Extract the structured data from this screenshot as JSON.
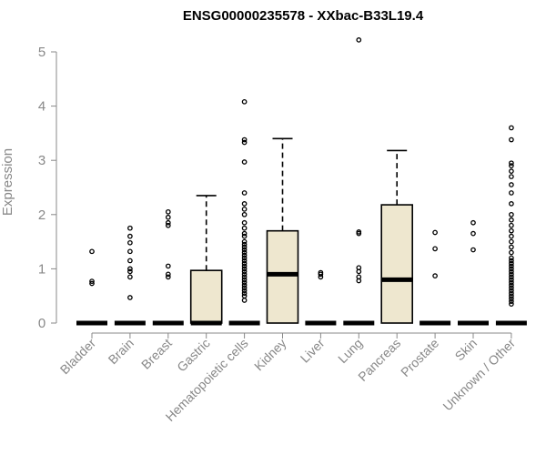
{
  "chart_data": {
    "type": "box",
    "title": "ENSG00000235578 - XXbac-B33L19.4",
    "ylabel": "Expression",
    "ylim": [
      0,
      5.3
    ],
    "yticks": [
      0,
      1,
      2,
      3,
      4,
      5
    ],
    "categories": [
      "Bladder",
      "Brain",
      "Breast",
      "Gastric",
      "Hematopoietic cells",
      "Kidney",
      "Liver",
      "Lung",
      "Pancreas",
      "Prostate",
      "Skin",
      "Unknown / Other"
    ],
    "box_color": "#eee7cf",
    "boxes": [
      {
        "category": "Bladder",
        "q1": 0,
        "median": 0,
        "q3": 0,
        "whisker_low": 0,
        "whisker_high": 0,
        "outliers": [
          0.73,
          0.77,
          1.32
        ]
      },
      {
        "category": "Brain",
        "q1": 0,
        "median": 0,
        "q3": 0,
        "whisker_low": 0,
        "whisker_high": 0,
        "outliers": [
          0.47,
          0.85,
          0.95,
          1.0,
          1.15,
          1.32,
          1.48,
          1.6,
          1.75
        ]
      },
      {
        "category": "Breast",
        "q1": 0,
        "median": 0,
        "q3": 0,
        "whisker_low": 0,
        "whisker_high": 0,
        "outliers": [
          0.85,
          0.9,
          1.05,
          1.8,
          1.85,
          1.95,
          2.05
        ]
      },
      {
        "category": "Gastric",
        "q1": 0,
        "median": 0,
        "q3": 0.97,
        "whisker_low": 0,
        "whisker_high": 2.35,
        "outliers": []
      },
      {
        "category": "Hematopoietic cells",
        "q1": 0,
        "median": 0,
        "q3": 0,
        "whisker_low": 0,
        "whisker_high": 0,
        "outliers": [
          0.42,
          0.5,
          0.55,
          0.6,
          0.65,
          0.7,
          0.75,
          0.8,
          0.85,
          0.9,
          0.95,
          1.0,
          1.05,
          1.1,
          1.15,
          1.2,
          1.25,
          1.3,
          1.35,
          1.4,
          1.45,
          1.5,
          1.6,
          1.65,
          1.75,
          1.85,
          2.0,
          2.1,
          2.2,
          2.4,
          2.97,
          3.33,
          3.38,
          4.08
        ]
      },
      {
        "category": "Kidney",
        "q1": 0,
        "median": 0.9,
        "q3": 1.7,
        "whisker_low": 0,
        "whisker_high": 3.4,
        "outliers": []
      },
      {
        "category": "Liver",
        "q1": 0,
        "median": 0,
        "q3": 0,
        "whisker_low": 0,
        "whisker_high": 0,
        "outliers": [
          0.85,
          0.9,
          0.93
        ]
      },
      {
        "category": "Lung",
        "q1": 0,
        "median": 0,
        "q3": 0,
        "whisker_low": 0,
        "whisker_high": 0,
        "outliers": [
          0.78,
          0.85,
          0.95,
          1.02,
          1.65,
          1.68,
          5.22
        ]
      },
      {
        "category": "Pancreas",
        "q1": 0,
        "median": 0.8,
        "q3": 2.18,
        "whisker_low": 0,
        "whisker_high": 3.18,
        "outliers": []
      },
      {
        "category": "Prostate",
        "q1": 0,
        "median": 0,
        "q3": 0,
        "whisker_low": 0,
        "whisker_high": 0,
        "outliers": [
          0.87,
          1.37,
          1.67
        ]
      },
      {
        "category": "Skin",
        "q1": 0,
        "median": 0,
        "q3": 0,
        "whisker_low": 0,
        "whisker_high": 0,
        "outliers": [
          1.35,
          1.65,
          1.85
        ]
      },
      {
        "category": "Unknown / Other",
        "q1": 0,
        "median": 0,
        "q3": 0,
        "whisker_low": 0,
        "whisker_high": 0,
        "outliers": [
          0.35,
          0.4,
          0.45,
          0.5,
          0.55,
          0.6,
          0.65,
          0.7,
          0.75,
          0.8,
          0.85,
          0.9,
          0.95,
          1.0,
          1.05,
          1.1,
          1.15,
          1.2,
          1.3,
          1.4,
          1.5,
          1.6,
          1.7,
          1.8,
          1.9,
          2.0,
          2.2,
          2.4,
          2.55,
          2.7,
          2.8,
          2.9,
          2.95,
          3.38,
          3.6
        ]
      }
    ]
  }
}
